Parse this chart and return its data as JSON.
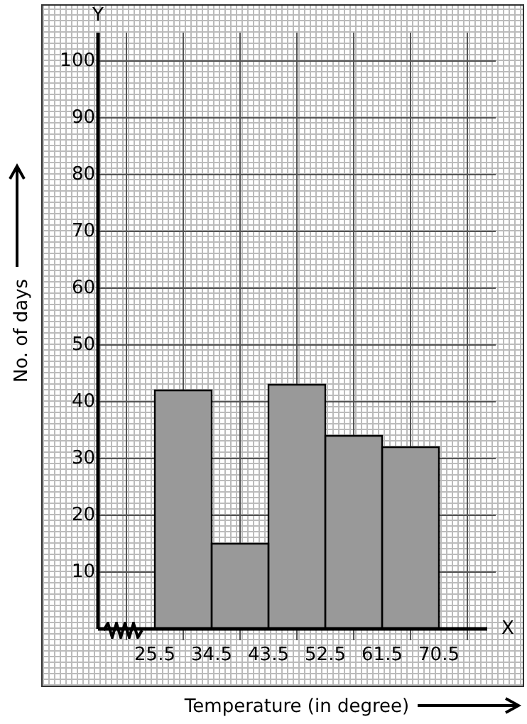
{
  "chart_data": {
    "type": "histogram",
    "xlabel": "Temperature (in degree)",
    "ylabel": "No. of days",
    "bins": [
      25.5,
      34.5,
      43.5,
      52.5,
      61.5,
      70.5
    ],
    "values": [
      42,
      15,
      43,
      34,
      32
    ],
    "color": "#999999",
    "xlim": [
      16.5,
      79.5
    ],
    "xticks": [
      25.5,
      34.5,
      43.5,
      52.5,
      61.5,
      70.5
    ],
    "ylim": [
      0,
      105
    ],
    "yticks": [
      10,
      20,
      30,
      40,
      50,
      60,
      70,
      80,
      90,
      100
    ],
    "grid": true,
    "annotations": [
      "X",
      "Y"
    ]
  }
}
